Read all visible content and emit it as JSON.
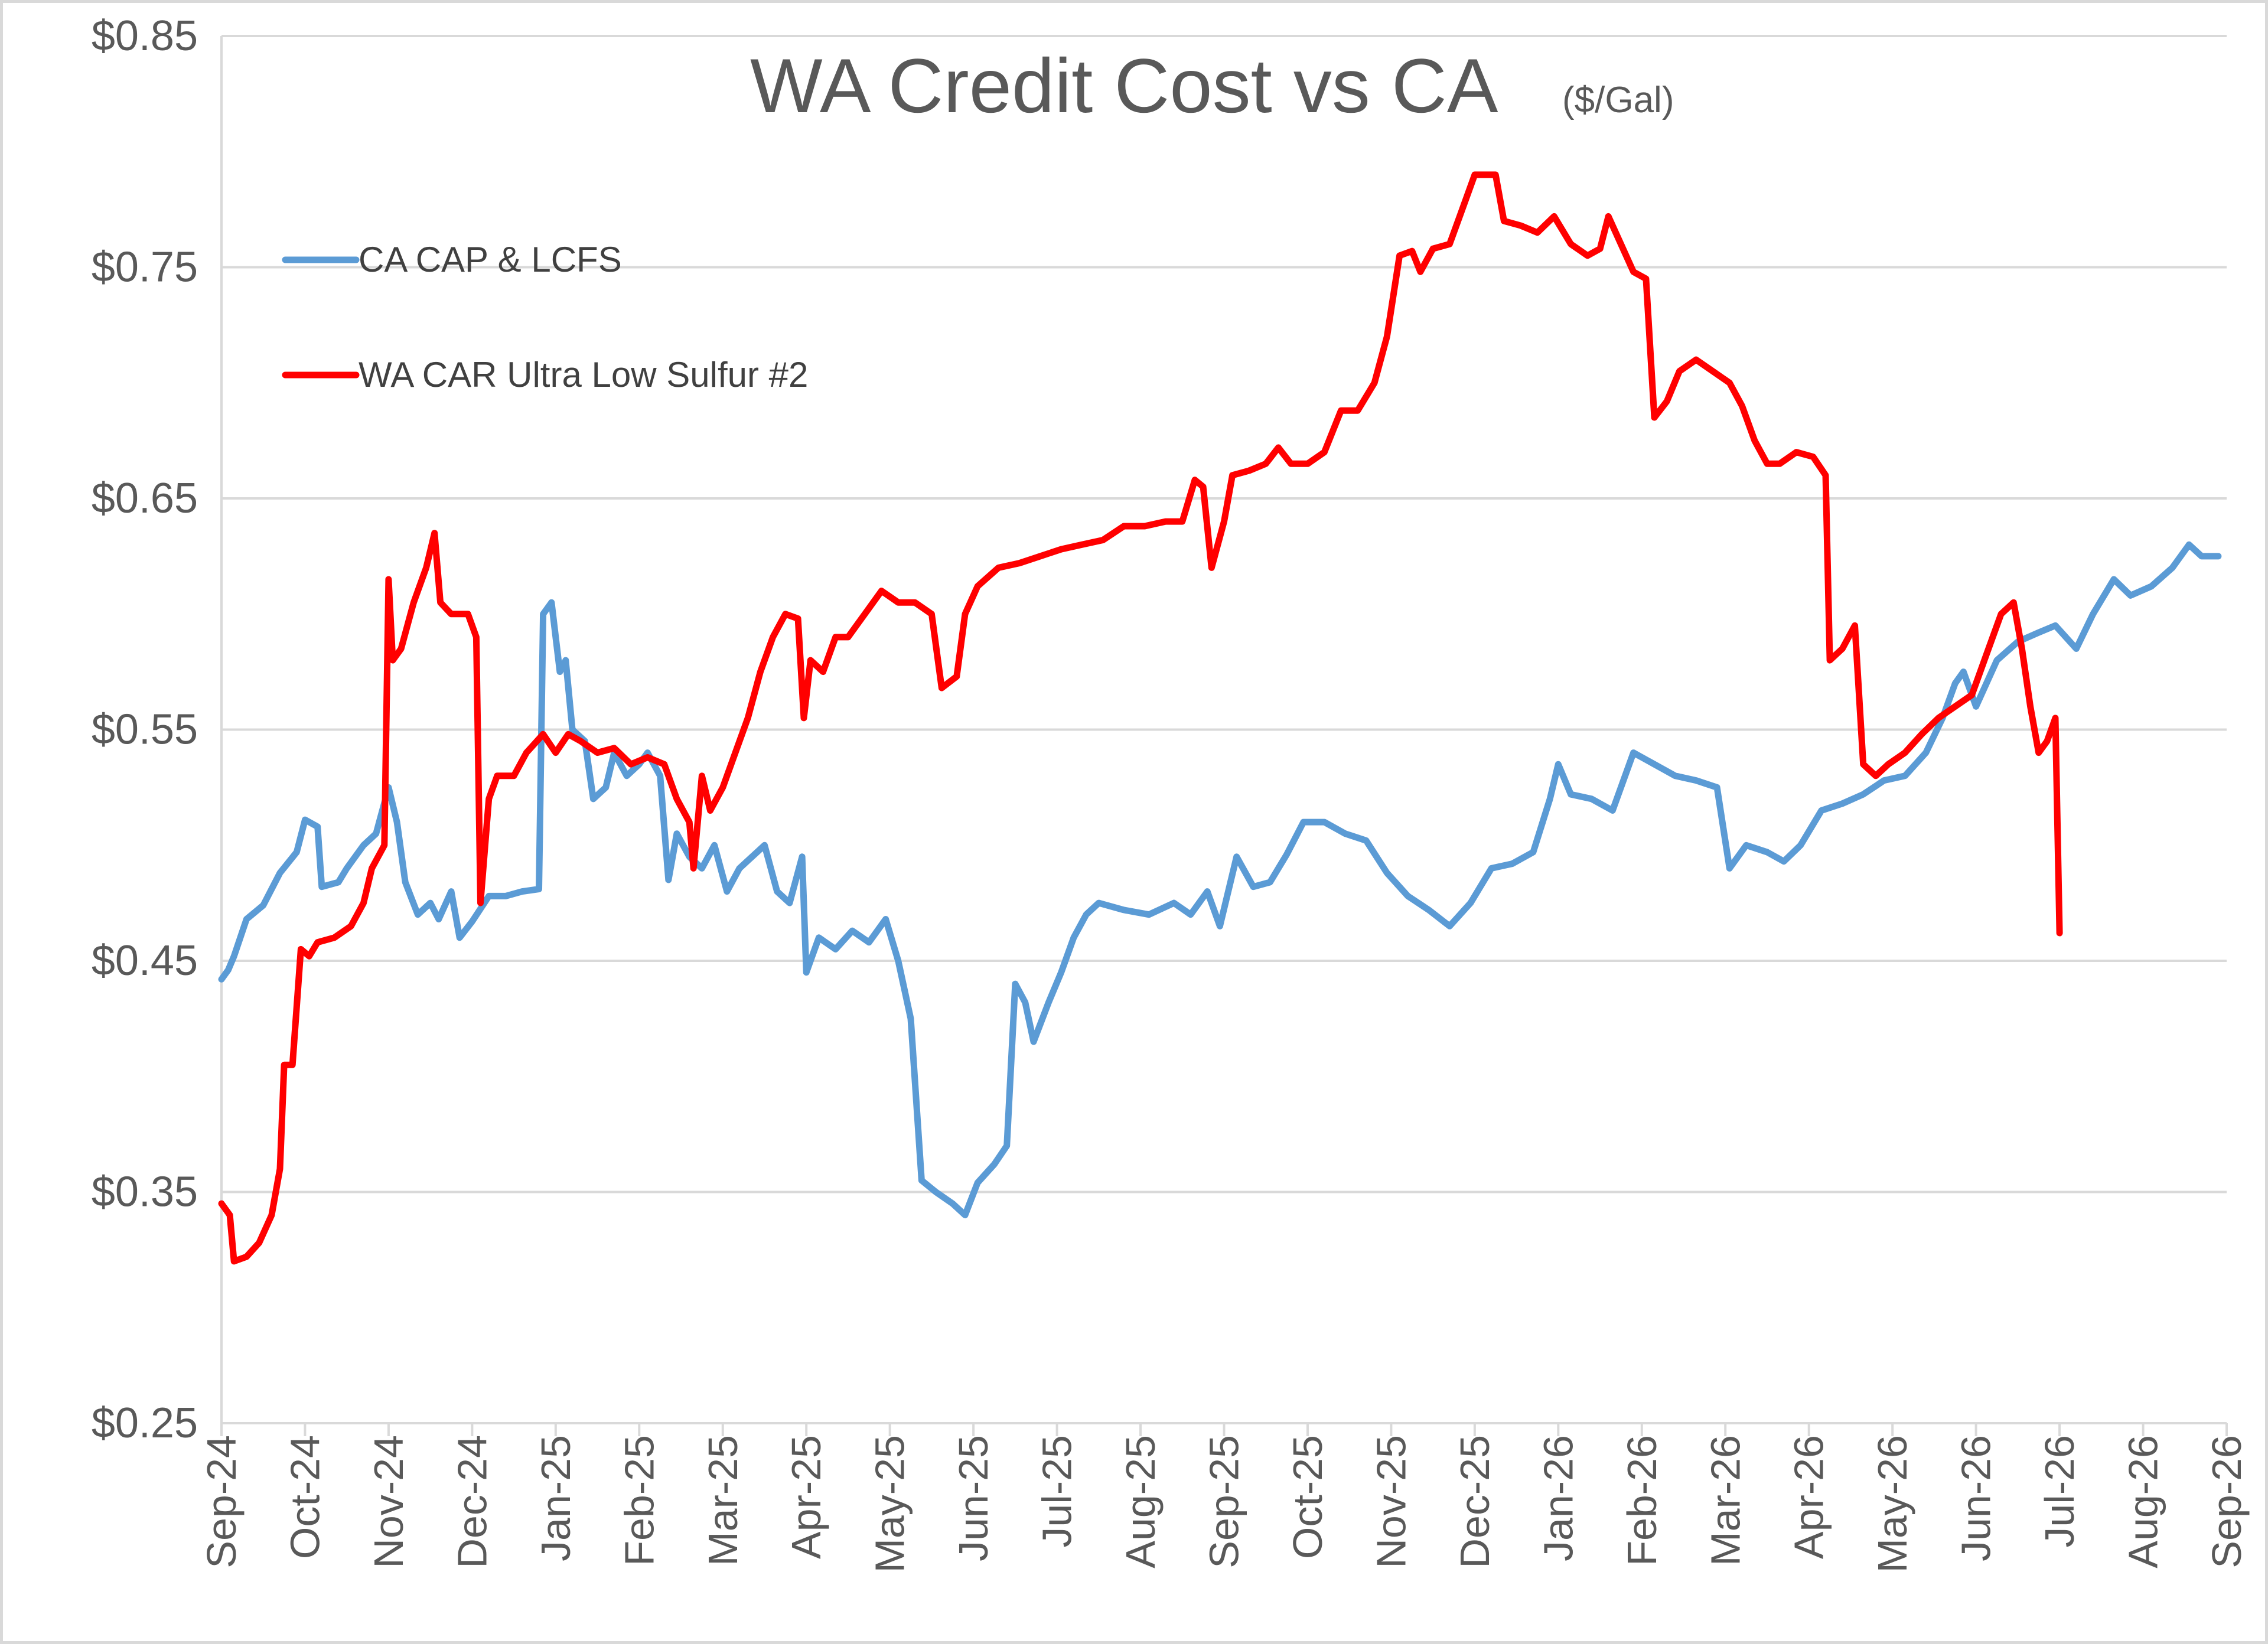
{
  "chart_data": {
    "type": "line",
    "title": "WA Credit Cost vs CA",
    "title_unit": "($/Gal)",
    "ylim": [
      0.25,
      0.85
    ],
    "yticks": [
      "$0.85",
      "$0.75",
      "$0.65",
      "$0.55",
      "$0.45",
      "$0.35",
      "$0.25"
    ],
    "ytick_values": [
      0.85,
      0.75,
      0.65,
      0.55,
      0.45,
      0.35,
      0.25
    ],
    "xticks": [
      "Sep-24",
      "Oct-24",
      "Nov-24",
      "Dec-24",
      "Jan-25",
      "Feb-25",
      "Mar-25",
      "Apr-25",
      "May-25",
      "Jun-25",
      "Jul-25",
      "Aug-25",
      "Sep-25",
      "Oct-25",
      "Nov-25",
      "Dec-25",
      "Jan-26",
      "Feb-26",
      "Mar-26",
      "Apr-26",
      "May-26",
      "Jun-26",
      "Jul-26",
      "Aug-26",
      "Sep-26"
    ],
    "grid": true,
    "legend_position": "top-left",
    "series": [
      {
        "name": "CA CAP & LCFS",
        "color": "#5b9bd5",
        "points": [
          [
            0.0,
            0.442
          ],
          [
            0.08,
            0.446
          ],
          [
            0.15,
            0.452
          ],
          [
            0.3,
            0.468
          ],
          [
            0.5,
            0.474
          ],
          [
            0.7,
            0.488
          ],
          [
            0.9,
            0.497
          ],
          [
            1.0,
            0.511
          ],
          [
            1.15,
            0.508
          ],
          [
            1.2,
            0.482
          ],
          [
            1.4,
            0.484
          ],
          [
            1.5,
            0.49
          ],
          [
            1.7,
            0.5
          ],
          [
            1.85,
            0.505
          ],
          [
            2.0,
            0.525
          ],
          [
            2.1,
            0.51
          ],
          [
            2.2,
            0.484
          ],
          [
            2.35,
            0.47
          ],
          [
            2.5,
            0.475
          ],
          [
            2.6,
            0.468
          ],
          [
            2.75,
            0.48
          ],
          [
            2.85,
            0.46
          ],
          [
            3.0,
            0.467
          ],
          [
            3.2,
            0.478
          ],
          [
            3.4,
            0.478
          ],
          [
            3.6,
            0.48
          ],
          [
            3.8,
            0.481
          ],
          [
            3.85,
            0.6
          ],
          [
            3.95,
            0.605
          ],
          [
            4.05,
            0.575
          ],
          [
            4.12,
            0.58
          ],
          [
            4.2,
            0.55
          ],
          [
            4.35,
            0.545
          ],
          [
            4.45,
            0.52
          ],
          [
            4.6,
            0.525
          ],
          [
            4.7,
            0.54
          ],
          [
            4.85,
            0.53
          ],
          [
            5.0,
            0.535
          ],
          [
            5.1,
            0.54
          ],
          [
            5.25,
            0.53
          ],
          [
            5.35,
            0.485
          ],
          [
            5.45,
            0.505
          ],
          [
            5.6,
            0.495
          ],
          [
            5.75,
            0.49
          ],
          [
            5.9,
            0.5
          ],
          [
            6.05,
            0.48
          ],
          [
            6.2,
            0.49
          ],
          [
            6.35,
            0.495
          ],
          [
            6.5,
            0.5
          ],
          [
            6.65,
            0.48
          ],
          [
            6.8,
            0.475
          ],
          [
            6.95,
            0.495
          ],
          [
            7.0,
            0.445
          ],
          [
            7.15,
            0.46
          ],
          [
            7.35,
            0.455
          ],
          [
            7.55,
            0.463
          ],
          [
            7.75,
            0.458
          ],
          [
            7.95,
            0.468
          ],
          [
            8.1,
            0.45
          ],
          [
            8.25,
            0.425
          ],
          [
            8.38,
            0.355
          ],
          [
            8.55,
            0.35
          ],
          [
            8.75,
            0.345
          ],
          [
            8.9,
            0.34
          ],
          [
            9.05,
            0.354
          ],
          [
            9.25,
            0.362
          ],
          [
            9.4,
            0.37
          ],
          [
            9.5,
            0.44
          ],
          [
            9.62,
            0.432
          ],
          [
            9.72,
            0.415
          ],
          [
            9.9,
            0.432
          ],
          [
            10.05,
            0.445
          ],
          [
            10.2,
            0.46
          ],
          [
            10.35,
            0.47
          ],
          [
            10.5,
            0.475
          ],
          [
            10.8,
            0.472
          ],
          [
            11.1,
            0.47
          ],
          [
            11.4,
            0.475
          ],
          [
            11.6,
            0.47
          ],
          [
            11.8,
            0.48
          ],
          [
            11.95,
            0.465
          ],
          [
            12.15,
            0.495
          ],
          [
            12.35,
            0.482
          ],
          [
            12.55,
            0.484
          ],
          [
            12.75,
            0.496
          ],
          [
            12.95,
            0.51
          ],
          [
            13.2,
            0.51
          ],
          [
            13.45,
            0.505
          ],
          [
            13.7,
            0.502
          ],
          [
            13.95,
            0.488
          ],
          [
            14.2,
            0.478
          ],
          [
            14.45,
            0.472
          ],
          [
            14.7,
            0.465
          ],
          [
            14.95,
            0.475
          ],
          [
            15.2,
            0.49
          ],
          [
            15.45,
            0.492
          ],
          [
            15.7,
            0.497
          ],
          [
            15.9,
            0.52
          ],
          [
            16.0,
            0.535
          ],
          [
            16.15,
            0.522
          ],
          [
            16.4,
            0.52
          ],
          [
            16.65,
            0.515
          ],
          [
            16.9,
            0.54
          ],
          [
            17.15,
            0.535
          ],
          [
            17.4,
            0.53
          ],
          [
            17.65,
            0.528
          ],
          [
            17.9,
            0.525
          ],
          [
            18.05,
            0.49
          ],
          [
            18.25,
            0.5
          ],
          [
            18.5,
            0.497
          ],
          [
            18.7,
            0.493
          ],
          [
            18.9,
            0.5
          ],
          [
            19.15,
            0.515
          ],
          [
            19.4,
            0.518
          ],
          [
            19.65,
            0.522
          ],
          [
            19.9,
            0.528
          ],
          [
            20.15,
            0.53
          ],
          [
            20.4,
            0.54
          ],
          [
            20.6,
            0.555
          ],
          [
            20.75,
            0.57
          ],
          [
            20.85,
            0.575
          ],
          [
            21.0,
            0.56
          ],
          [
            21.25,
            0.58
          ],
          [
            21.5,
            0.588
          ],
          [
            21.75,
            0.592
          ],
          [
            21.95,
            0.595
          ],
          [
            22.2,
            0.585
          ],
          [
            22.4,
            0.6
          ],
          [
            22.65,
            0.615
          ],
          [
            22.85,
            0.608
          ],
          [
            23.1,
            0.612
          ],
          [
            23.35,
            0.62
          ],
          [
            23.55,
            0.63
          ],
          [
            23.7,
            0.625
          ],
          [
            23.9,
            0.625
          ]
        ]
      },
      {
        "name": "WA CAR Ultra Low Sulfur #2",
        "color": "#ff0000",
        "points": [
          [
            0.0,
            0.345
          ],
          [
            0.1,
            0.34
          ],
          [
            0.15,
            0.32
          ],
          [
            0.3,
            0.322
          ],
          [
            0.45,
            0.328
          ],
          [
            0.6,
            0.34
          ],
          [
            0.7,
            0.36
          ],
          [
            0.75,
            0.405
          ],
          [
            0.85,
            0.405
          ],
          [
            0.9,
            0.43
          ],
          [
            0.95,
            0.455
          ],
          [
            1.05,
            0.452
          ],
          [
            1.15,
            0.458
          ],
          [
            1.35,
            0.46
          ],
          [
            1.55,
            0.465
          ],
          [
            1.7,
            0.475
          ],
          [
            1.8,
            0.49
          ],
          [
            1.95,
            0.5
          ],
          [
            2.0,
            0.615
          ],
          [
            2.05,
            0.58
          ],
          [
            2.15,
            0.585
          ],
          [
            2.3,
            0.605
          ],
          [
            2.45,
            0.62
          ],
          [
            2.55,
            0.635
          ],
          [
            2.62,
            0.605
          ],
          [
            2.75,
            0.6
          ],
          [
            2.95,
            0.6
          ],
          [
            3.05,
            0.59
          ],
          [
            3.1,
            0.475
          ],
          [
            3.2,
            0.52
          ],
          [
            3.3,
            0.53
          ],
          [
            3.5,
            0.53
          ],
          [
            3.65,
            0.54
          ],
          [
            3.85,
            0.548
          ],
          [
            4.0,
            0.54
          ],
          [
            4.15,
            0.548
          ],
          [
            4.3,
            0.545
          ],
          [
            4.5,
            0.54
          ],
          [
            4.7,
            0.542
          ],
          [
            4.9,
            0.535
          ],
          [
            5.1,
            0.538
          ],
          [
            5.3,
            0.535
          ],
          [
            5.45,
            0.52
          ],
          [
            5.6,
            0.51
          ],
          [
            5.65,
            0.49
          ],
          [
            5.75,
            0.53
          ],
          [
            5.85,
            0.515
          ],
          [
            6.0,
            0.525
          ],
          [
            6.15,
            0.54
          ],
          [
            6.3,
            0.555
          ],
          [
            6.45,
            0.575
          ],
          [
            6.6,
            0.59
          ],
          [
            6.75,
            0.6
          ],
          [
            6.9,
            0.598
          ],
          [
            6.97,
            0.555
          ],
          [
            7.05,
            0.58
          ],
          [
            7.2,
            0.575
          ],
          [
            7.35,
            0.59
          ],
          [
            7.5,
            0.59
          ],
          [
            7.7,
            0.6
          ],
          [
            7.9,
            0.61
          ],
          [
            8.1,
            0.605
          ],
          [
            8.3,
            0.605
          ],
          [
            8.5,
            0.6
          ],
          [
            8.62,
            0.568
          ],
          [
            8.8,
            0.573
          ],
          [
            8.9,
            0.6
          ],
          [
            9.05,
            0.612
          ],
          [
            9.3,
            0.62
          ],
          [
            9.55,
            0.622
          ],
          [
            9.8,
            0.625
          ],
          [
            10.05,
            0.628
          ],
          [
            10.3,
            0.63
          ],
          [
            10.55,
            0.632
          ],
          [
            10.8,
            0.638
          ],
          [
            11.05,
            0.638
          ],
          [
            11.3,
            0.64
          ],
          [
            11.5,
            0.64
          ],
          [
            11.65,
            0.658
          ],
          [
            11.75,
            0.655
          ],
          [
            11.85,
            0.62
          ],
          [
            12.0,
            0.64
          ],
          [
            12.1,
            0.66
          ],
          [
            12.3,
            0.662
          ],
          [
            12.5,
            0.665
          ],
          [
            12.65,
            0.672
          ],
          [
            12.8,
            0.665
          ],
          [
            13.0,
            0.665
          ],
          [
            13.2,
            0.67
          ],
          [
            13.4,
            0.688
          ],
          [
            13.6,
            0.688
          ],
          [
            13.8,
            0.7
          ],
          [
            13.95,
            0.72
          ],
          [
            14.1,
            0.755
          ],
          [
            14.25,
            0.757
          ],
          [
            14.35,
            0.748
          ],
          [
            14.5,
            0.758
          ],
          [
            14.7,
            0.76
          ],
          [
            14.85,
            0.775
          ],
          [
            15.0,
            0.79
          ],
          [
            15.25,
            0.79
          ],
          [
            15.35,
            0.77
          ],
          [
            15.55,
            0.768
          ],
          [
            15.75,
            0.765
          ],
          [
            15.95,
            0.772
          ],
          [
            16.15,
            0.76
          ],
          [
            16.35,
            0.755
          ],
          [
            16.5,
            0.758
          ],
          [
            16.6,
            0.772
          ],
          [
            16.75,
            0.76
          ],
          [
            16.9,
            0.748
          ],
          [
            17.05,
            0.745
          ],
          [
            17.15,
            0.685
          ],
          [
            17.3,
            0.692
          ],
          [
            17.45,
            0.705
          ],
          [
            17.65,
            0.71
          ],
          [
            17.85,
            0.705
          ],
          [
            18.05,
            0.7
          ],
          [
            18.2,
            0.69
          ],
          [
            18.35,
            0.675
          ],
          [
            18.5,
            0.665
          ],
          [
            18.65,
            0.665
          ],
          [
            18.85,
            0.67
          ],
          [
            19.05,
            0.668
          ],
          [
            19.2,
            0.66
          ],
          [
            19.25,
            0.58
          ],
          [
            19.4,
            0.585
          ],
          [
            19.55,
            0.595
          ],
          [
            19.65,
            0.535
          ],
          [
            19.8,
            0.53
          ],
          [
            19.95,
            0.535
          ],
          [
            20.15,
            0.54
          ],
          [
            20.35,
            0.548
          ],
          [
            20.55,
            0.555
          ],
          [
            20.75,
            0.56
          ],
          [
            20.95,
            0.565
          ],
          [
            21.15,
            0.585
          ],
          [
            21.3,
            0.6
          ],
          [
            21.45,
            0.605
          ],
          [
            21.55,
            0.585
          ],
          [
            21.65,
            0.56
          ],
          [
            21.75,
            0.54
          ],
          [
            21.85,
            0.545
          ],
          [
            21.95,
            0.555
          ],
          [
            22.0,
            0.462
          ]
        ]
      }
    ]
  }
}
